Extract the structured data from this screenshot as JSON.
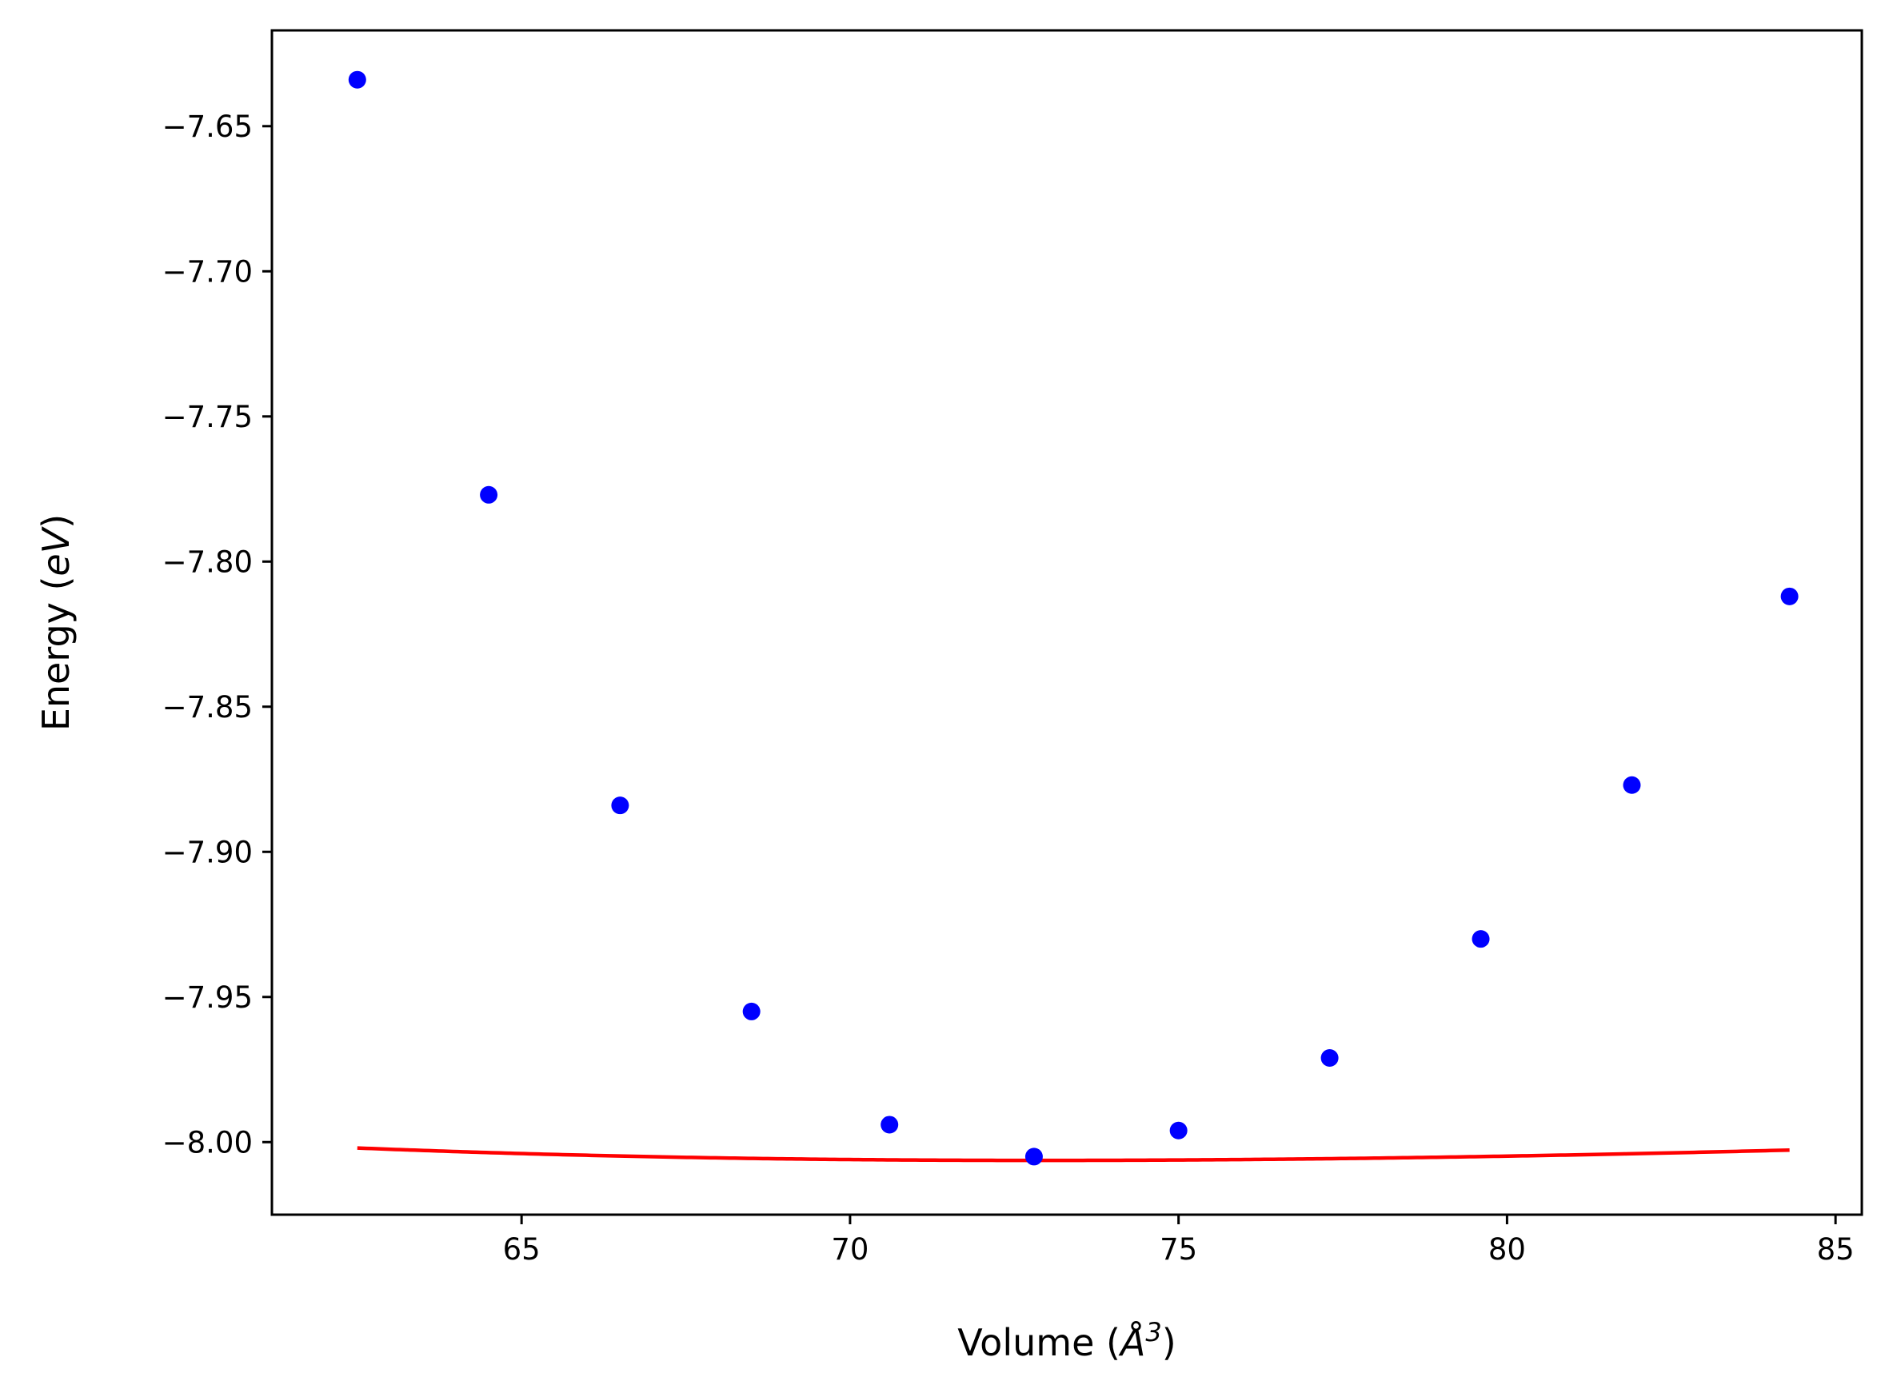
{
  "chart_data": {
    "type": "scatter",
    "title": "",
    "xlabel": {
      "prefix": "Volume (",
      "symbol": "Å",
      "superscript": "3",
      "suffix": ")"
    },
    "ylabel": {
      "prefix": "Energy (",
      "unit": "eV",
      "suffix": ")"
    },
    "xlim": [
      61.2,
      85.4
    ],
    "ylim": [
      -8.025,
      -7.617
    ],
    "xticks": [
      65,
      70,
      75,
      80,
      85
    ],
    "xtick_labels": [
      "65",
      "70",
      "75",
      "80",
      "85"
    ],
    "yticks": [
      -7.65,
      -7.7,
      -7.75,
      -7.8,
      -7.85,
      -7.9,
      -7.95,
      -8.0
    ],
    "ytick_labels": [
      "−7.65",
      "−7.70",
      "−7.75",
      "−7.80",
      "−7.85",
      "−7.90",
      "−7.95",
      "−8.00"
    ],
    "grid": false,
    "legend": "none",
    "series": [
      {
        "kind": "points",
        "color": "#0000ff",
        "x": [
          62.5,
          64.5,
          66.5,
          68.5,
          70.6,
          72.8,
          75.0,
          77.3,
          79.6,
          81.9,
          84.3
        ],
        "y": [
          -7.634,
          -7.777,
          -7.884,
          -7.955,
          -7.994,
          -8.005,
          -7.996,
          -7.971,
          -7.93,
          -7.877,
          -7.812
        ]
      },
      {
        "kind": "fit-curve",
        "color": "#ff0000",
        "fit": {
          "E0": -8.0063,
          "V0": 72.9,
          "B0": 0.0048,
          "B0_prime": 2.7
        },
        "x_range": [
          62.5,
          84.3
        ]
      }
    ]
  }
}
